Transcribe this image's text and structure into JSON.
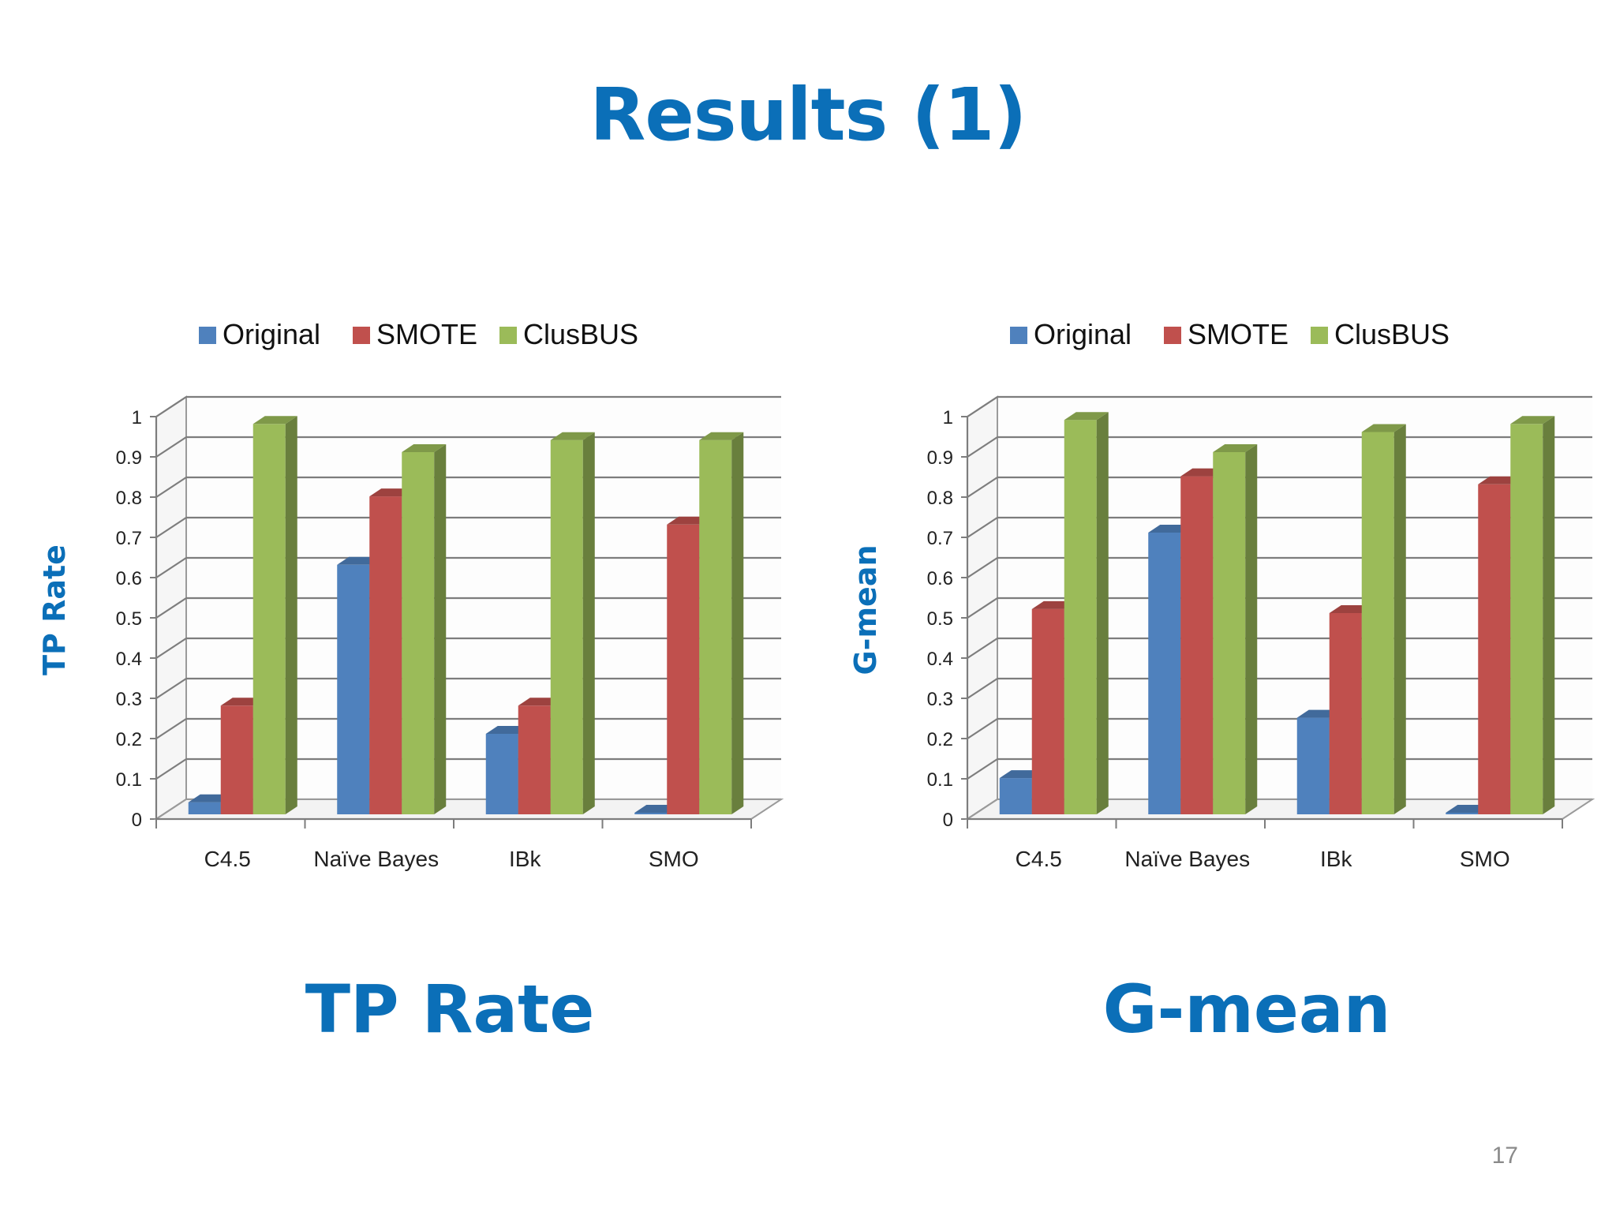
{
  "slide": {
    "title": "Results (1)",
    "caption_left": "TP Rate",
    "caption_right": "G-mean",
    "page_number": "17"
  },
  "colors": {
    "title": "#0b6fb8",
    "Original": "#4f81bd",
    "SMOTE": "#c0504d",
    "ClusBUS": "#9bbb59"
  },
  "chart_data": [
    {
      "type": "bar",
      "style": "3d-clustered-column",
      "title": "",
      "xlabel": "",
      "ylabel": "TP Rate",
      "categories": [
        "C4.5",
        "Naïve Bayes",
        "IBk",
        "SMO"
      ],
      "series": [
        {
          "name": "Original",
          "values": [
            0.03,
            0.62,
            0.2,
            0.0
          ]
        },
        {
          "name": "SMOTE",
          "values": [
            0.27,
            0.79,
            0.27,
            0.72
          ]
        },
        {
          "name": "ClusBUS",
          "values": [
            0.97,
            0.9,
            0.93,
            0.93
          ]
        }
      ],
      "yticks": [
        "0",
        "0.1",
        "0.2",
        "0.3",
        "0.4",
        "0.5",
        "0.6",
        "0.7",
        "0.8",
        "0.9",
        "1"
      ],
      "ylim": [
        0,
        1
      ],
      "grid": true,
      "legend": "top"
    },
    {
      "type": "bar",
      "style": "3d-clustered-column",
      "title": "",
      "xlabel": "",
      "ylabel": "G-mean",
      "categories": [
        "C4.5",
        "Naïve Bayes",
        "IBk",
        "SMO"
      ],
      "series": [
        {
          "name": "Original",
          "values": [
            0.09,
            0.7,
            0.24,
            0.0
          ]
        },
        {
          "name": "SMOTE",
          "values": [
            0.51,
            0.84,
            0.5,
            0.82
          ]
        },
        {
          "name": "ClusBUS",
          "values": [
            0.98,
            0.9,
            0.95,
            0.97
          ]
        }
      ],
      "yticks": [
        "0",
        "0.1",
        "0.2",
        "0.3",
        "0.4",
        "0.5",
        "0.6",
        "0.7",
        "0.8",
        "0.9",
        "1"
      ],
      "ylim": [
        0,
        1
      ],
      "grid": true,
      "legend": "top"
    }
  ]
}
